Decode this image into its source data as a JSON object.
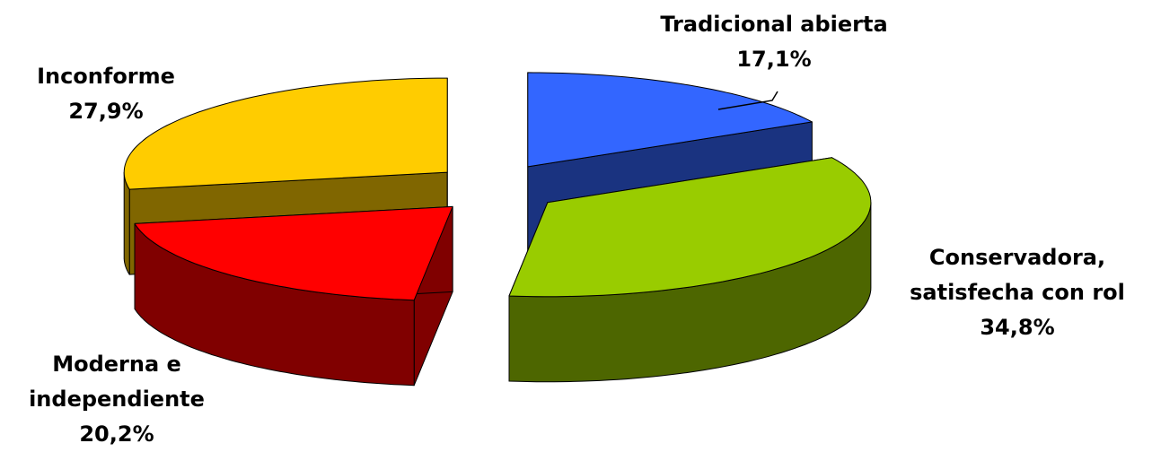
{
  "chart_data": {
    "type": "pie",
    "categories": [
      "Tradicional abierta",
      "Conservadora, satisfecha con rol",
      "Moderna e independiente",
      "Inconforme"
    ],
    "values": [
      17.1,
      34.8,
      20.2,
      27.9
    ],
    "value_labels": [
      "17,1%",
      "34,8%",
      "20,2%",
      "27,9%"
    ],
    "colors": [
      "#3366ff",
      "#99cc00",
      "#ff0000",
      "#ffcc00"
    ]
  }
}
